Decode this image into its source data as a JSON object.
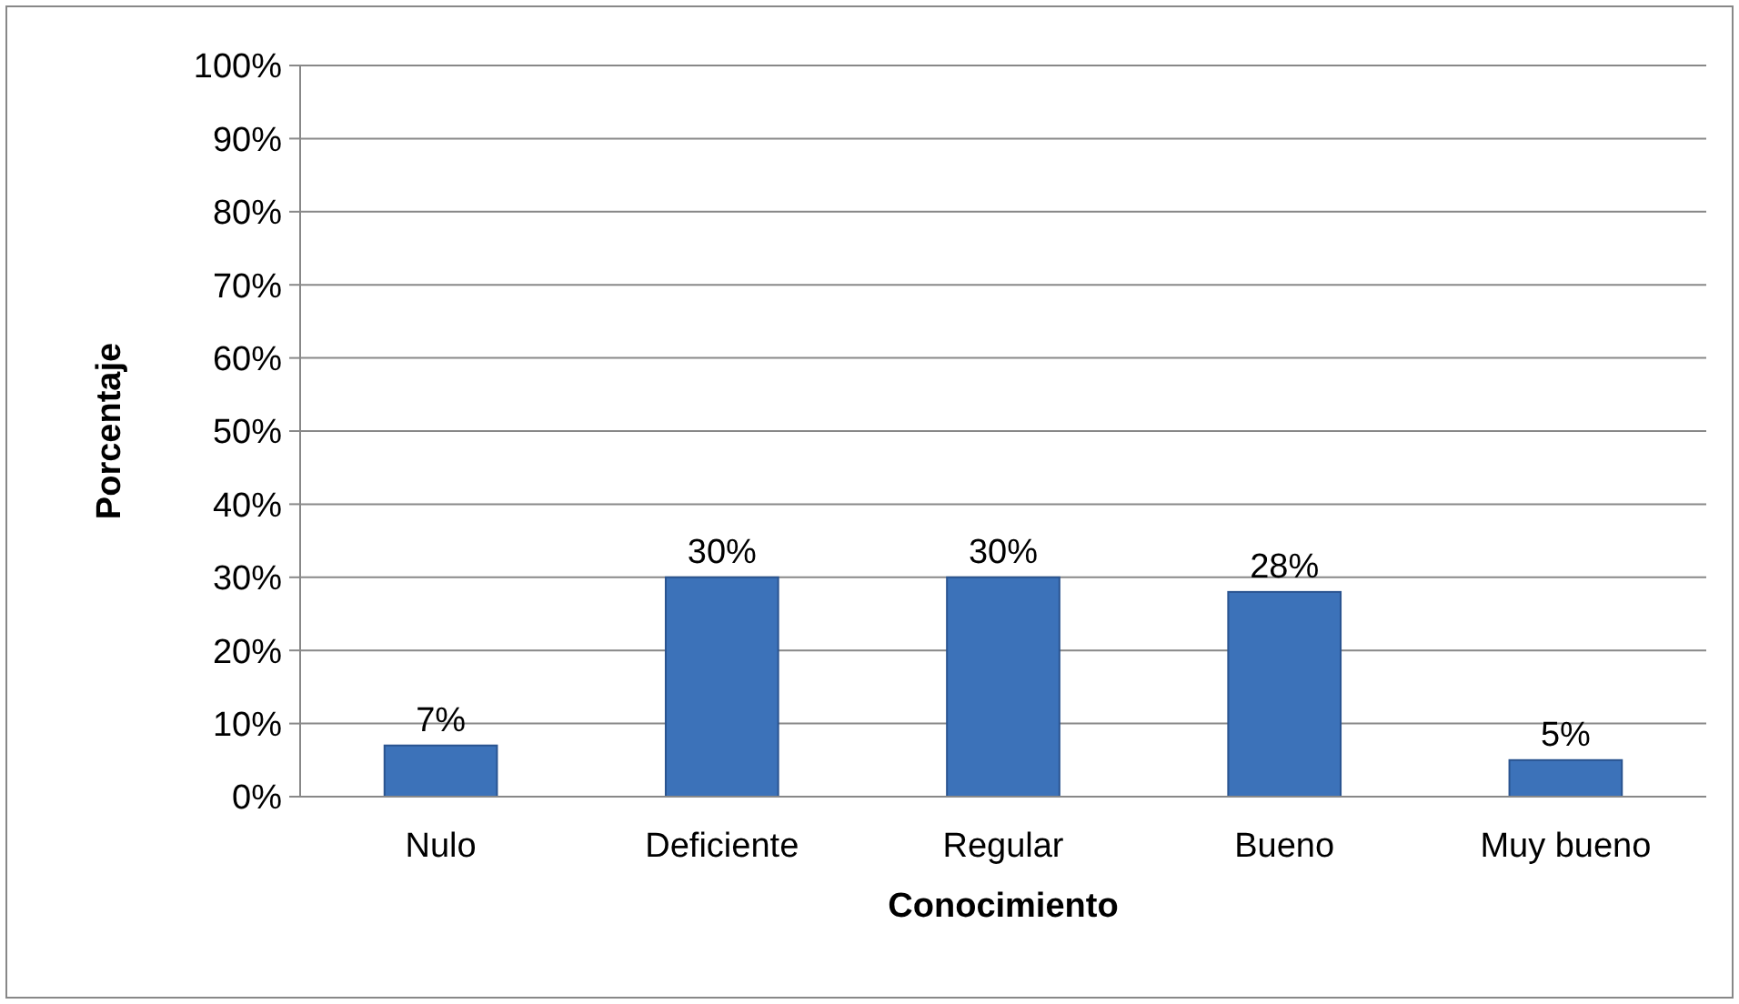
{
  "chart_data": {
    "type": "bar",
    "xlabel": "Conocimiento",
    "ylabel": "Porcentaje",
    "categories": [
      "Nulo",
      "Deficiente",
      "Regular",
      "Bueno",
      "Muy bueno"
    ],
    "values": [
      7,
      30,
      30,
      28,
      5
    ],
    "color": "#3c72b9",
    "value_labels": [
      "7%",
      "30%",
      "30%",
      "28%",
      "5%"
    ],
    "ylim": [
      0,
      100
    ],
    "yticks": [
      {
        "value": 0,
        "label": "0%"
      },
      {
        "value": 10,
        "label": "10%"
      },
      {
        "value": 20,
        "label": "20%"
      },
      {
        "value": 30,
        "label": "30%"
      },
      {
        "value": 40,
        "label": "40%"
      },
      {
        "value": 50,
        "label": "50%"
      },
      {
        "value": 60,
        "label": "60%"
      },
      {
        "value": 70,
        "label": "70%"
      },
      {
        "value": 80,
        "label": "80%"
      },
      {
        "value": 90,
        "label": "90%"
      },
      {
        "value": 100,
        "label": "100%"
      }
    ],
    "grid": "y"
  }
}
